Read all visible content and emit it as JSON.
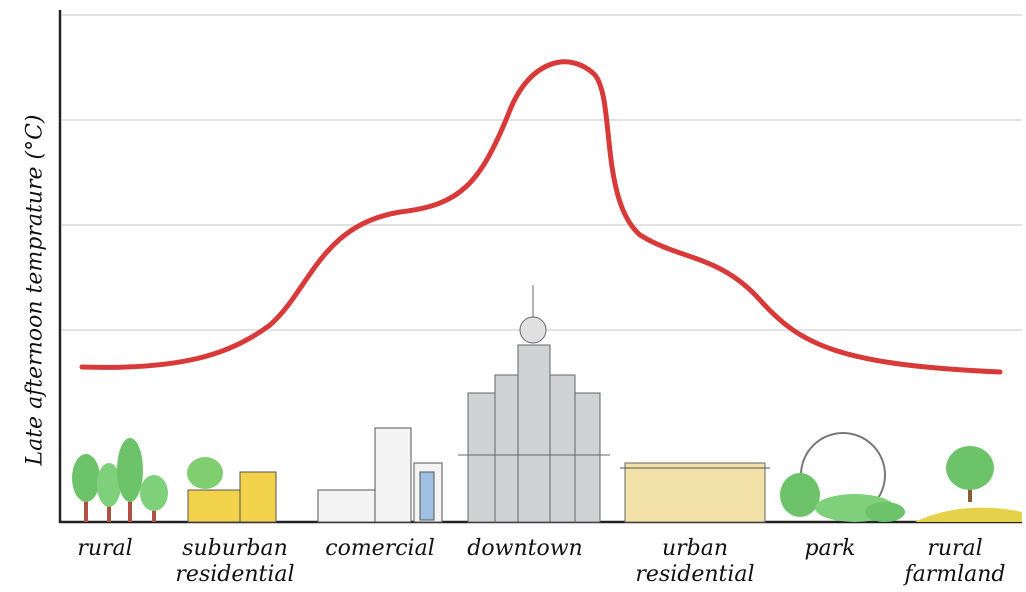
{
  "y_axis_label": "Late afternoon temprature (°C)",
  "zones": [
    "rural",
    "suburban residential",
    "comercial",
    "downtown",
    "urban residential",
    "park",
    "rural farmland"
  ]
}
